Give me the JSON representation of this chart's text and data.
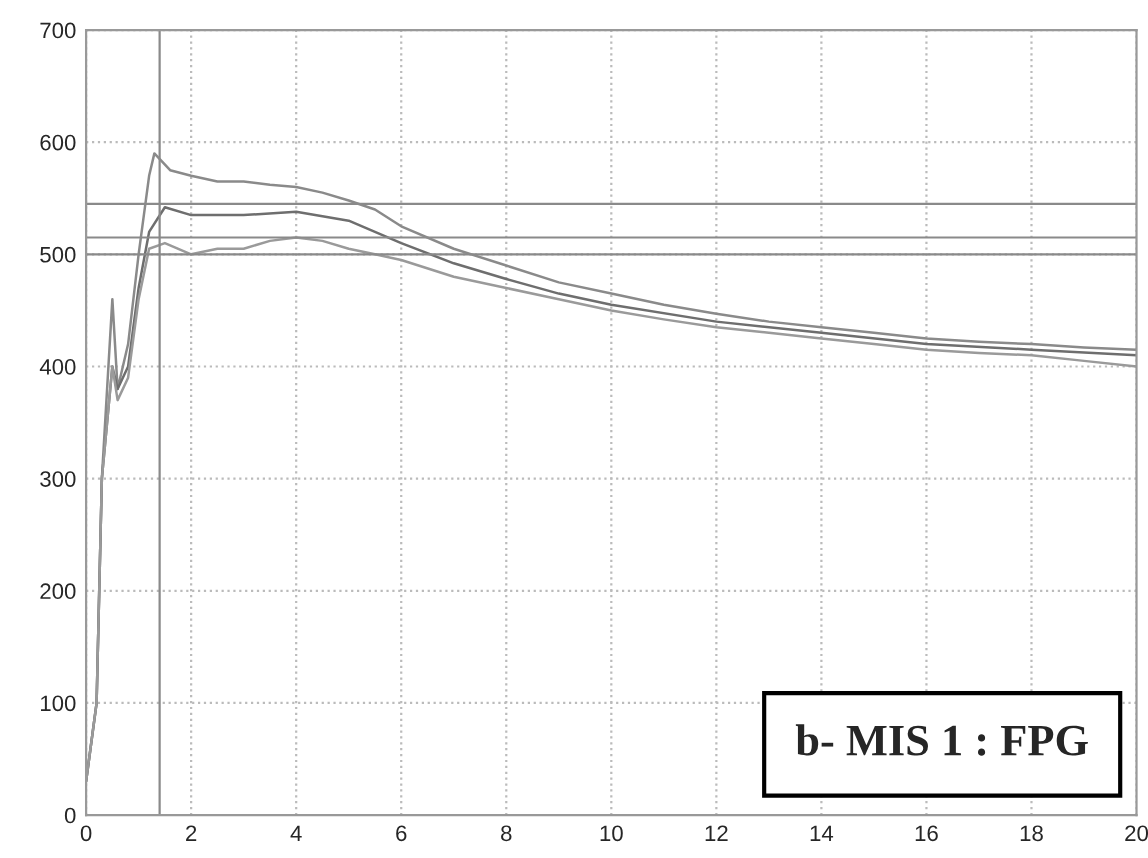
{
  "chart_data": {
    "type": "line",
    "xlim": [
      0,
      20
    ],
    "ylim": [
      0,
      700
    ],
    "xticks": [
      0,
      2,
      4,
      6,
      8,
      10,
      12,
      14,
      16,
      18,
      20
    ],
    "yticks": [
      0,
      100,
      200,
      300,
      400,
      500,
      600,
      700
    ],
    "grid": true,
    "marker": "none",
    "line_style": "solid",
    "series": [
      {
        "color": "#8a8a8a",
        "x": [
          0,
          0.2,
          0.3,
          0.5,
          0.6,
          0.8,
          1.0,
          1.2,
          1.3,
          1.6,
          2,
          2.5,
          3,
          3.5,
          4,
          4.5,
          5,
          5.5,
          6,
          7,
          8,
          9,
          10,
          11,
          12,
          13,
          14,
          15,
          16,
          17,
          18,
          19,
          20
        ],
        "values": [
          30,
          100,
          300,
          460,
          380,
          420,
          500,
          570,
          590,
          575,
          570,
          565,
          565,
          562,
          560,
          555,
          548,
          540,
          525,
          505,
          490,
          475,
          465,
          455,
          447,
          440,
          435,
          430,
          425,
          422,
          420,
          417,
          415
        ]
      },
      {
        "color": "#6e6e6e",
        "x": [
          0,
          0.2,
          0.3,
          0.5,
          0.6,
          0.8,
          1.0,
          1.2,
          1.5,
          2,
          3,
          4,
          5,
          6,
          7,
          8,
          9,
          10,
          12,
          14,
          16,
          18,
          20
        ],
        "values": [
          30,
          100,
          300,
          400,
          380,
          400,
          470,
          520,
          542,
          535,
          535,
          538,
          530,
          510,
          492,
          478,
          465,
          455,
          440,
          430,
          420,
          415,
          410
        ]
      },
      {
        "color": "#9a9a9a",
        "x": [
          0,
          0.2,
          0.3,
          0.5,
          0.6,
          0.8,
          1.0,
          1.2,
          1.5,
          2,
          2.5,
          3,
          3.5,
          4,
          4.5,
          5,
          5.5,
          6,
          7,
          8,
          9,
          10,
          11,
          12,
          13,
          14,
          15,
          16,
          17,
          18,
          19,
          20
        ],
        "values": [
          30,
          100,
          300,
          400,
          370,
          390,
          460,
          505,
          510,
          500,
          505,
          505,
          512,
          515,
          512,
          505,
          500,
          495,
          480,
          470,
          460,
          450,
          442,
          435,
          430,
          425,
          420,
          415,
          412,
          410,
          405,
          400
        ]
      }
    ],
    "ref_lines": [
      {
        "axis": "y",
        "value": 545,
        "color": "#8a8a8a"
      },
      {
        "axis": "y",
        "value": 515,
        "color": "#8a8a8a"
      },
      {
        "axis": "y",
        "value": 500,
        "color": "#8a8a8a"
      },
      {
        "axis": "x",
        "value": 1.4,
        "color": "#8a8a8a"
      }
    ],
    "annotations": [
      "b- MIS 1 : FPG"
    ]
  }
}
